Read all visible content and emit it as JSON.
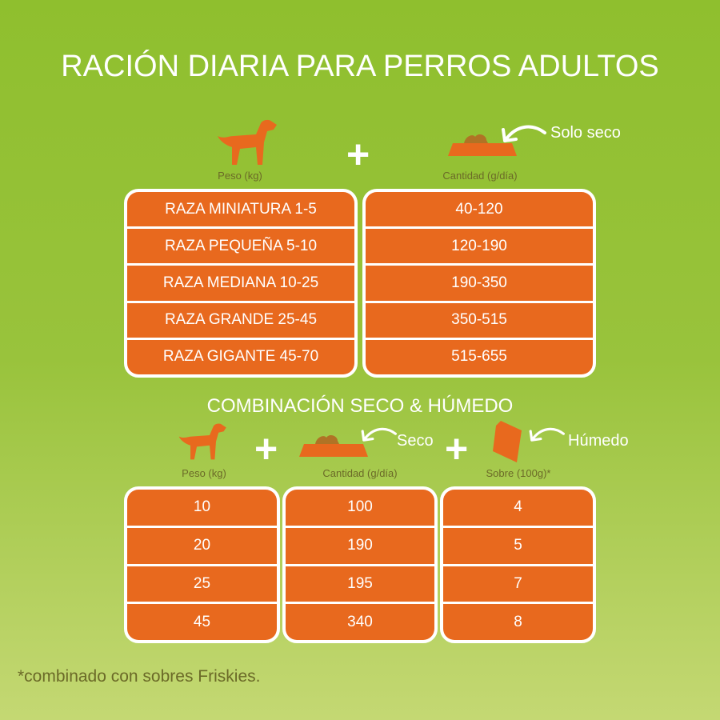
{
  "title": "RACIÓN DIARIA PARA PERROS ADULTOS",
  "colors": {
    "background": "#8fbf2e",
    "orange": "#e8691e",
    "label": "#6b6a28",
    "kibble": "#b07325"
  },
  "section1": {
    "weight_label": "Peso (kg)",
    "amount_label": "Cantidad (g/día)",
    "note": "Solo seco",
    "icons": [
      "dog-icon",
      "plus-icon",
      "food-bowl-icon",
      "arrow-icon"
    ],
    "rows": [
      {
        "breed": "RAZA MINIATURA 1-5",
        "amount": "40-120"
      },
      {
        "breed": "RAZA PEQUEÑA 5-10",
        "amount": "120-190"
      },
      {
        "breed": "RAZA MEDIANA 10-25",
        "amount": "190-350"
      },
      {
        "breed": "RAZA GRANDE 25-45",
        "amount": "350-515"
      },
      {
        "breed": "RAZA GIGANTE 45-70",
        "amount": "515-655"
      }
    ]
  },
  "section2": {
    "title": "COMBINACIÓN SECO & HÚMEDO",
    "weight_label": "Peso (kg)",
    "amount_label": "Cantidad (g/día)",
    "pouch_label": "Sobre (100g)*",
    "dry_note": "Seco",
    "wet_note": "Húmedo",
    "rows": [
      {
        "weight": "10",
        "amount": "100",
        "pouches": "4"
      },
      {
        "weight": "20",
        "amount": "190",
        "pouches": "5"
      },
      {
        "weight": "25",
        "amount": "195",
        "pouches": "7"
      },
      {
        "weight": "45",
        "amount": "340",
        "pouches": "8"
      }
    ]
  },
  "footnote": "*combinado con sobres Friskies."
}
